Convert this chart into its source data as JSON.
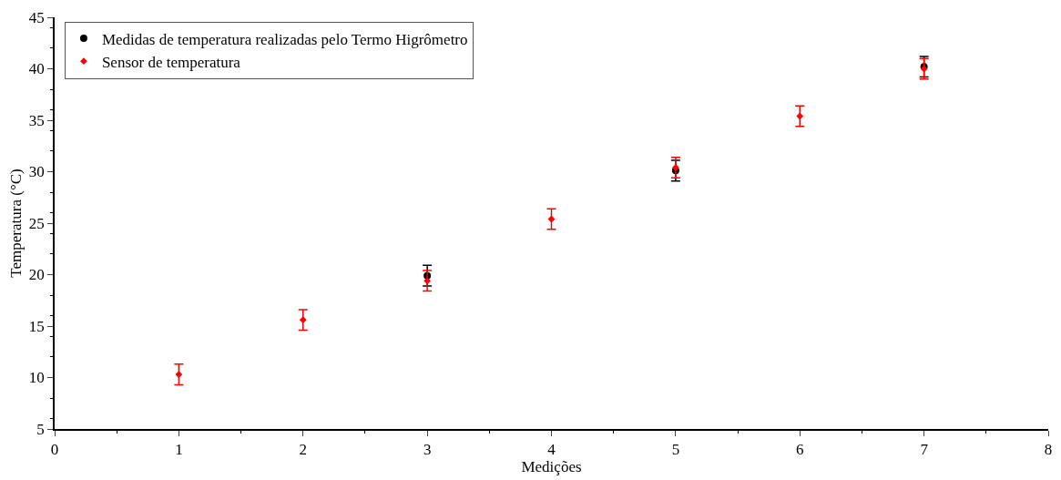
{
  "chart_data": {
    "type": "scatter",
    "xlabel": "Medições",
    "ylabel": "Temperatura (°C)",
    "x": [
      1,
      2,
      3,
      4,
      5,
      6,
      7
    ],
    "series": [
      {
        "name": "Medidas de temperatura realizadas pelo Termo Higrômetro",
        "color": "#000000",
        "marker": "circle",
        "values": [
          null,
          null,
          19.9,
          null,
          30.1,
          null,
          40.2
        ],
        "errors": [
          null,
          null,
          1,
          null,
          1,
          null,
          1
        ]
      },
      {
        "name": "Sensor de temperatura",
        "color": "#ff0000",
        "marker": "diamond",
        "values": [
          10.3,
          15.6,
          19.4,
          25.4,
          30.4,
          35.4,
          40.0
        ],
        "errors": [
          1,
          1,
          1,
          1,
          1,
          1,
          1
        ]
      }
    ],
    "xlim": [
      0,
      8
    ],
    "xticks": [
      0,
      1,
      2,
      3,
      4,
      5,
      6,
      7,
      8
    ],
    "ylim": [
      5,
      45
    ],
    "yticks": [
      5,
      10,
      15,
      20,
      25,
      30,
      35,
      40,
      45
    ],
    "legend": "top left"
  }
}
